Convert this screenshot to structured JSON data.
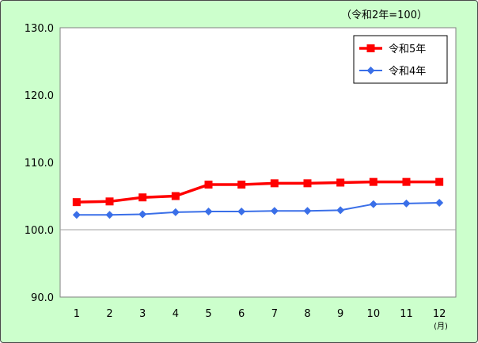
{
  "chart_data": {
    "type": "line",
    "title": "",
    "base_note": "（令和2年=100）",
    "x_unit": "(月)",
    "categories": [
      "1",
      "2",
      "3",
      "4",
      "5",
      "6",
      "7",
      "8",
      "9",
      "10",
      "11",
      "12"
    ],
    "ylim": [
      90.0,
      130.0
    ],
    "yticks": [
      "90.0",
      "100.0",
      "110.0",
      "120.0",
      "130.0"
    ],
    "reference_line_y": 100.0,
    "grid": false,
    "legend_position": "top-right",
    "series": [
      {
        "name": "令和5年",
        "color": "#ff0000",
        "marker": "square",
        "values": [
          104.1,
          104.2,
          104.8,
          105.0,
          106.7,
          106.7,
          106.9,
          106.9,
          107.0,
          107.1,
          107.1,
          107.1
        ]
      },
      {
        "name": "令和4年",
        "color": "#3a6fe8",
        "marker": "diamond",
        "values": [
          102.2,
          102.2,
          102.3,
          102.6,
          102.7,
          102.7,
          102.8,
          102.8,
          102.9,
          103.8,
          103.9,
          104.0
        ]
      }
    ]
  }
}
